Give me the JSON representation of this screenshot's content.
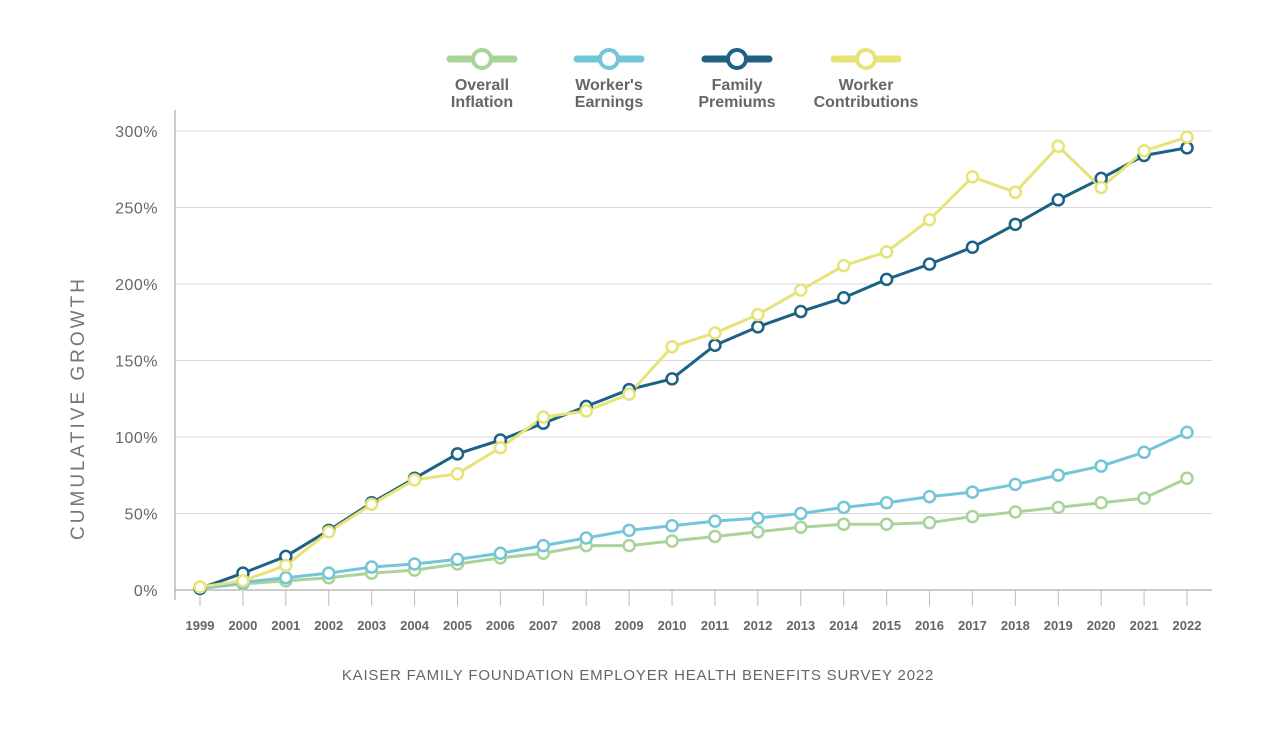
{
  "chart_data": {
    "type": "line",
    "ylabel": "CUMULATIVE GROWTH",
    "source": "KAISER FAMILY FOUNDATION EMPLOYER HEALTH BENEFITS SURVEY 2022",
    "ylim": [
      0,
      300
    ],
    "y_ticks": [
      "0%",
      "50%",
      "100%",
      "150%",
      "200%",
      "250%",
      "300%"
    ],
    "y_tick_values": [
      0,
      50,
      100,
      150,
      200,
      250,
      300
    ],
    "grid": true,
    "legend_position": "top",
    "x": [
      "1999",
      "2000",
      "2001",
      "2002",
      "2003",
      "2004",
      "2005",
      "2006",
      "2007",
      "2008",
      "2009",
      "2010",
      "2011",
      "2012",
      "2013",
      "2014",
      "2015",
      "2016",
      "2017",
      "2018",
      "2019",
      "2020",
      "2021",
      "2022"
    ],
    "series": [
      {
        "name": "Overall Inflation",
        "label_lines": [
          "Overall",
          "Inflation"
        ],
        "color": "#a9d39a",
        "values": [
          1,
          4,
          6,
          8,
          11,
          13,
          17,
          21,
          24,
          29,
          29,
          32,
          35,
          38,
          41,
          43,
          43,
          44,
          48,
          51,
          54,
          57,
          60,
          73
        ]
      },
      {
        "name": "Worker's Earnings",
        "label_lines": [
          "Worker's",
          "Earnings"
        ],
        "color": "#72c6d8",
        "values": [
          1,
          5,
          8,
          11,
          15,
          17,
          20,
          24,
          29,
          34,
          39,
          42,
          45,
          47,
          50,
          54,
          57,
          61,
          64,
          69,
          75,
          81,
          90,
          103
        ]
      },
      {
        "name": "Family Premiums",
        "label_lines": [
          "Family",
          "Premiums"
        ],
        "color": "#1d6184",
        "values": [
          1,
          11,
          22,
          39,
          57,
          73,
          89,
          98,
          109,
          120,
          131,
          138,
          160,
          172,
          182,
          191,
          203,
          213,
          224,
          239,
          255,
          269,
          284,
          289
        ]
      },
      {
        "name": "Worker Contributions",
        "label_lines": [
          "Worker",
          "Contributions"
        ],
        "color": "#e7e377",
        "values": [
          2,
          6,
          16,
          38,
          56,
          72,
          76,
          93,
          113,
          117,
          128,
          159,
          168,
          180,
          196,
          212,
          221,
          242,
          270,
          260,
          290,
          263,
          287,
          296
        ]
      }
    ]
  }
}
